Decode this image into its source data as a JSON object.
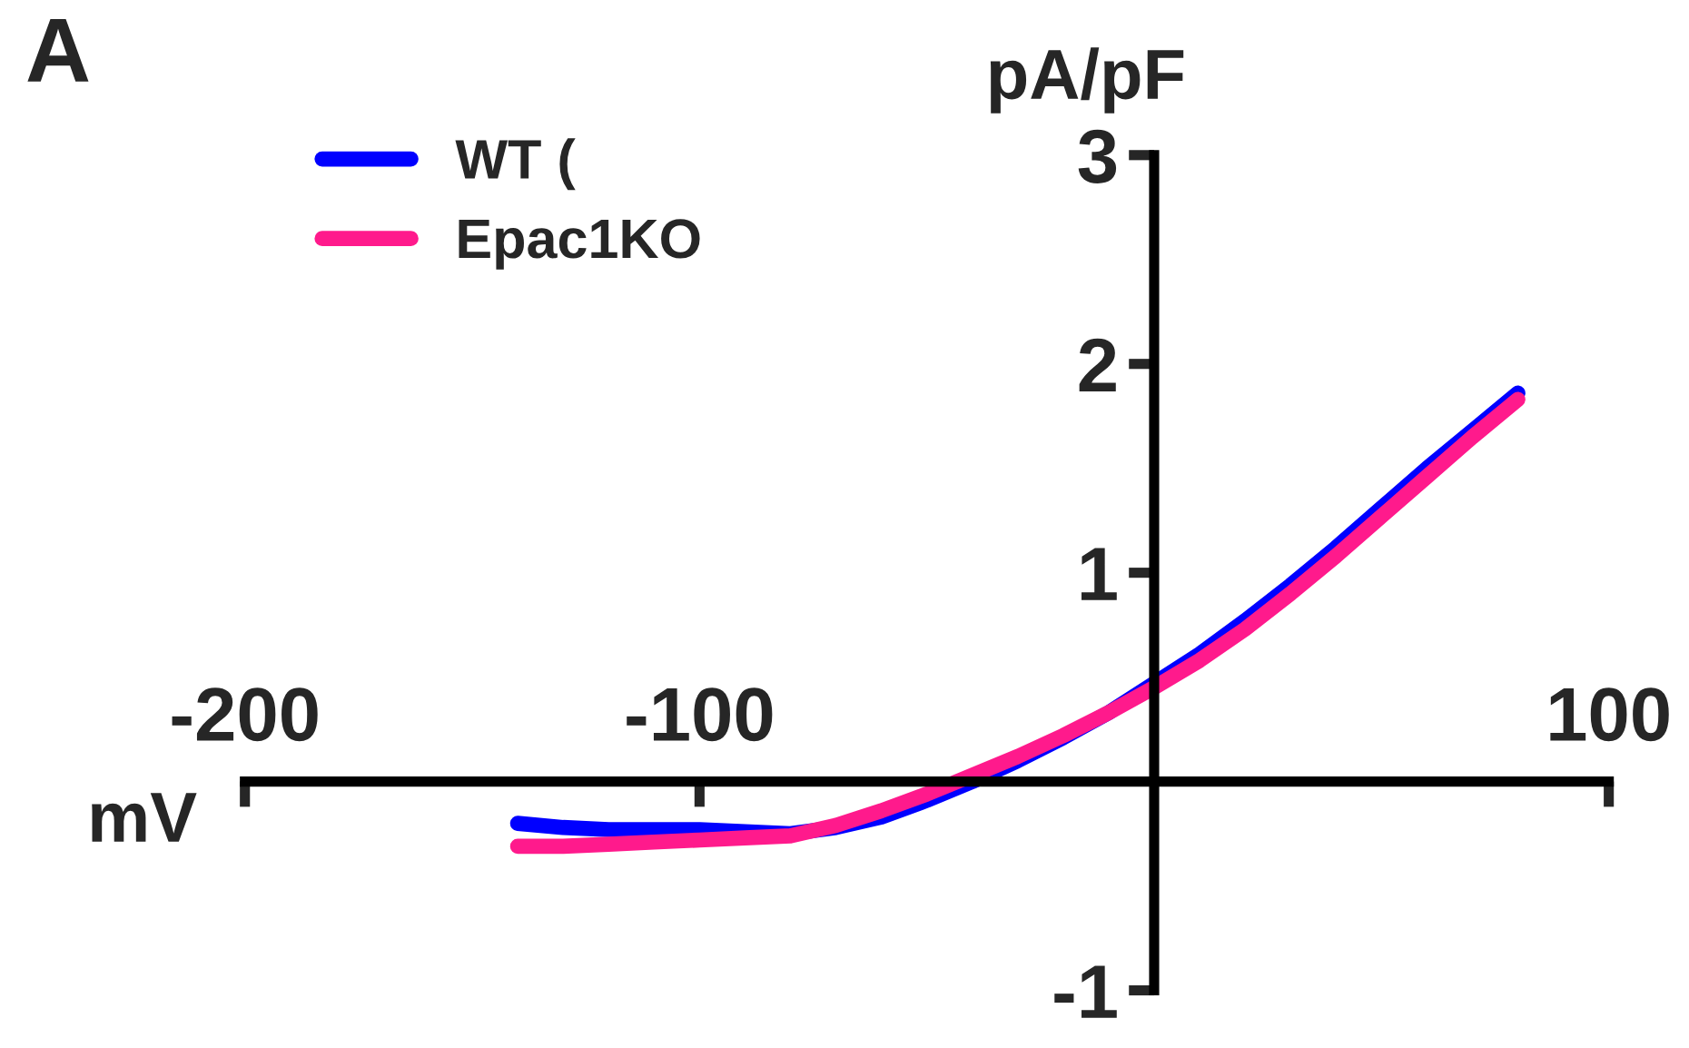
{
  "chart_data": {
    "type": "line",
    "xlabel": "mV",
    "ylabel": "pA/pF",
    "annotations": [
      "A"
    ],
    "x": [
      -140,
      -130,
      -120,
      -110,
      -100,
      -90,
      -80,
      -70,
      -60,
      -50,
      -40,
      -30,
      -20,
      -10,
      0,
      10,
      20,
      30,
      40,
      50,
      60,
      70,
      80
    ],
    "series": [
      {
        "name": "WT (",
        "color": "#0000ff",
        "values": [
          -0.2,
          -0.22,
          -0.23,
          -0.23,
          -0.23,
          -0.24,
          -0.25,
          -0.22,
          -0.17,
          -0.09,
          0.0,
          0.1,
          0.21,
          0.33,
          0.47,
          0.61,
          0.77,
          0.94,
          1.12,
          1.31,
          1.5,
          1.68,
          1.86
        ]
      },
      {
        "name": "Epac1KO",
        "color": "#ff1a8c",
        "values": [
          -0.31,
          -0.31,
          -0.3,
          -0.29,
          -0.28,
          -0.27,
          -0.26,
          -0.21,
          -0.14,
          -0.06,
          0.03,
          0.12,
          0.22,
          0.33,
          0.45,
          0.58,
          0.73,
          0.9,
          1.08,
          1.27,
          1.46,
          1.65,
          1.83
        ]
      }
    ],
    "xlim": [
      -200,
      100
    ],
    "xticks": [
      -200,
      -100,
      100
    ],
    "ylim": [
      -1,
      3
    ],
    "yticks": [
      -1,
      1,
      2,
      3
    ],
    "legend": "top left",
    "marker": "none",
    "line_style": "solid"
  }
}
